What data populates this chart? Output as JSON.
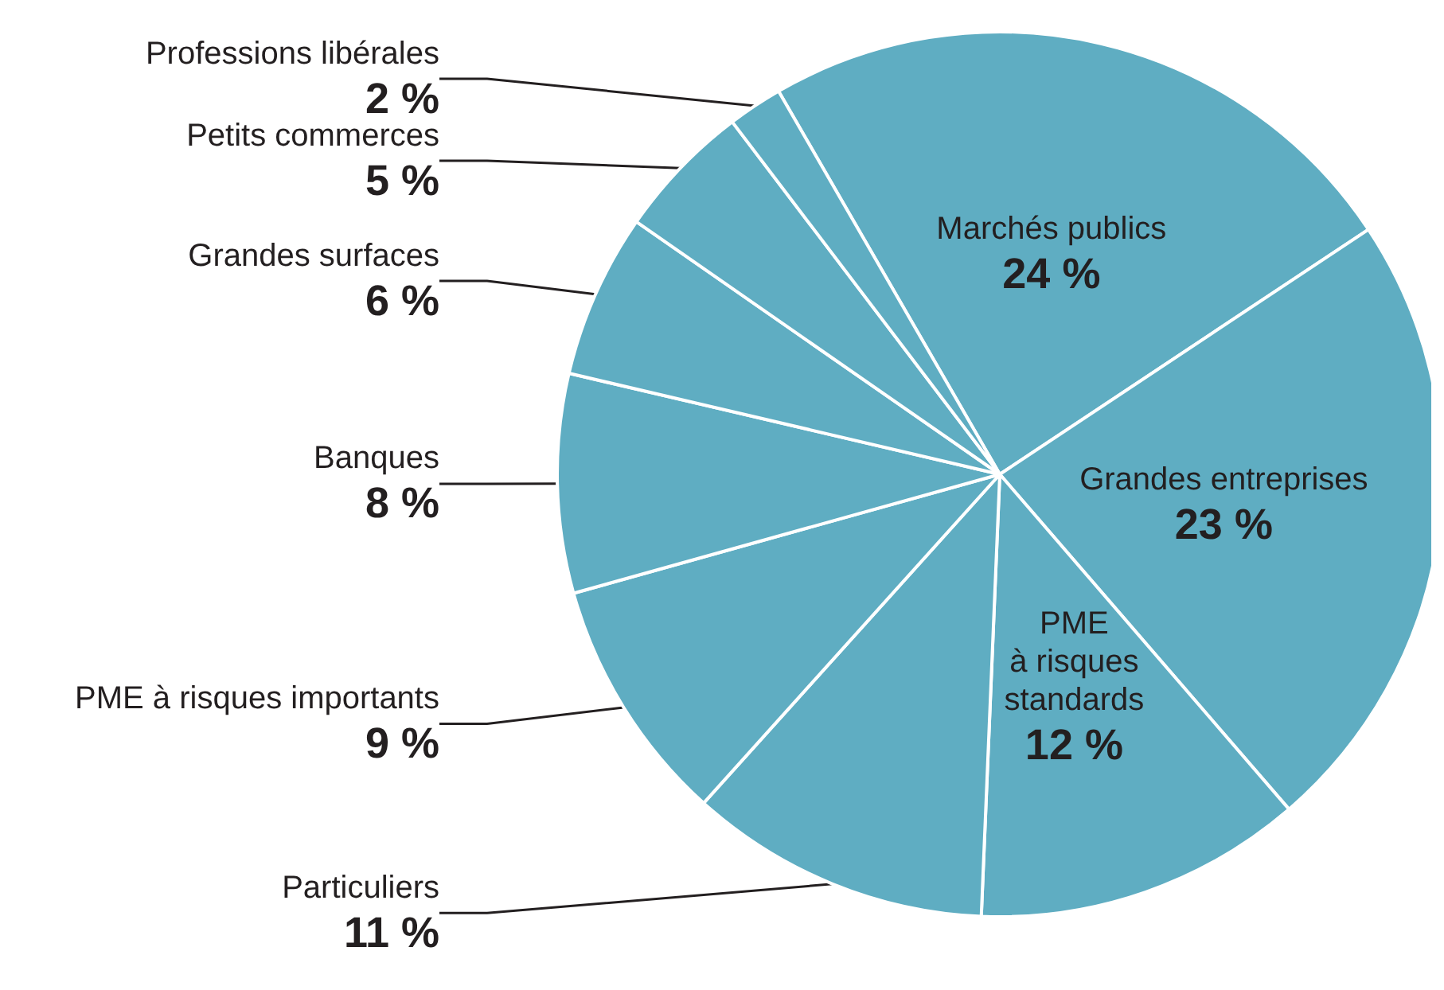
{
  "chart_data": {
    "type": "pie",
    "categories": [
      "Marchés publics",
      "Grandes entreprises",
      "PME\nà risques\nstandards",
      "Particuliers",
      "PME à risques importants",
      "Banques",
      "Grandes surfaces",
      "Petits commerces",
      "Professions libérales"
    ],
    "values": [
      24,
      23,
      12,
      11,
      9,
      8,
      6,
      5,
      2
    ],
    "value_labels": [
      "24 %",
      "23 %",
      "12 %",
      "11 %",
      "9 %",
      "8 %",
      "6 %",
      "5 %",
      "2 %"
    ],
    "colors": [
      "#5fadc2",
      "#5fadc2",
      "#5fadc2",
      "#5fadc2",
      "#5fadc2",
      "#5fadc2",
      "#5fadc2",
      "#5fadc2",
      "#5fadc2"
    ],
    "legend": false
  }
}
